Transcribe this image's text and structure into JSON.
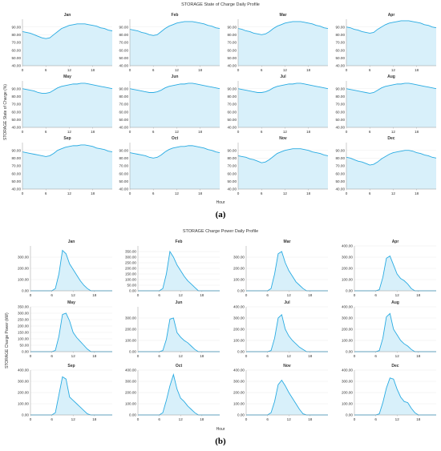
{
  "figures": [
    {
      "title": "STORAGE State of Charge Daily Profile",
      "ylabel": "STORAGE State of Charge (%)",
      "xlabel": "Hour",
      "panel_label": "(a)"
    },
    {
      "title": "STORAGE Charge Power Daily Profile",
      "ylabel": "STORAGE Charge Power (kW)",
      "xlabel": "Hour",
      "panel_label": "(b)"
    }
  ],
  "colors": {
    "line": "#29abe2",
    "fill": "#d8f0fa",
    "axis": "#999999",
    "grid": "#e6e6e6",
    "text": "#333333"
  },
  "chart_data": [
    {
      "type": "area",
      "title": "STORAGE State of Charge Daily Profile",
      "xlabel": "Hour",
      "ylabel": "STORAGE State of Charge (%)",
      "xlim": [
        0,
        23
      ],
      "ylim": [
        40,
        100
      ],
      "xticks": [
        "0",
        "6",
        "12",
        "18"
      ],
      "yticks": [
        "40.00",
        "50.00",
        "60.00",
        "70.00",
        "80.00",
        "90.00"
      ],
      "x": [
        0,
        1,
        2,
        3,
        4,
        5,
        6,
        7,
        8,
        9,
        10,
        11,
        12,
        13,
        14,
        15,
        16,
        17,
        18,
        19,
        20,
        21,
        22,
        23
      ],
      "series": [
        {
          "name": "Jan",
          "values": [
            84,
            83,
            82,
            80,
            78,
            76,
            75,
            76,
            80,
            84,
            88,
            90,
            92,
            93,
            94,
            94,
            94,
            93,
            92,
            91,
            89,
            88,
            86,
            85
          ]
        },
        {
          "name": "Feb",
          "values": [
            87,
            86,
            85,
            83,
            82,
            80,
            79,
            80,
            84,
            88,
            91,
            93,
            95,
            96,
            97,
            97,
            97,
            96,
            95,
            94,
            92,
            91,
            89,
            88
          ]
        },
        {
          "name": "Mar",
          "values": [
            88,
            87,
            85,
            84,
            82,
            81,
            80,
            81,
            84,
            88,
            91,
            93,
            95,
            96,
            97,
            97,
            97,
            96,
            95,
            94,
            92,
            91,
            89,
            88
          ]
        },
        {
          "name": "Apr",
          "values": [
            90,
            89,
            87,
            86,
            84,
            83,
            82,
            83,
            87,
            90,
            93,
            95,
            96,
            97,
            98,
            98,
            98,
            97,
            96,
            95,
            93,
            92,
            90,
            89
          ]
        },
        {
          "name": "May",
          "values": [
            90,
            89,
            88,
            87,
            85,
            84,
            84,
            85,
            88,
            91,
            93,
            94,
            95,
            96,
            96,
            97,
            97,
            96,
            95,
            94,
            93,
            92,
            91,
            90
          ]
        },
        {
          "name": "Jun",
          "values": [
            90,
            89,
            88,
            87,
            86,
            85,
            85,
            86,
            88,
            91,
            93,
            94,
            95,
            96,
            96,
            97,
            97,
            96,
            95,
            94,
            93,
            92,
            91,
            90
          ]
        },
        {
          "name": "Jul",
          "values": [
            90,
            89,
            88,
            87,
            86,
            85,
            85,
            86,
            88,
            91,
            93,
            94,
            95,
            96,
            96,
            97,
            97,
            96,
            95,
            94,
            93,
            92,
            91,
            90
          ]
        },
        {
          "name": "Aug",
          "values": [
            90,
            89,
            88,
            87,
            86,
            85,
            84,
            85,
            88,
            91,
            93,
            94,
            95,
            96,
            96,
            97,
            97,
            96,
            95,
            94,
            93,
            92,
            91,
            90
          ]
        },
        {
          "name": "Sep",
          "values": [
            88,
            87,
            86,
            85,
            84,
            83,
            82,
            83,
            86,
            90,
            92,
            94,
            95,
            96,
            96,
            97,
            97,
            96,
            95,
            93,
            92,
            91,
            89,
            88
          ]
        },
        {
          "name": "Oct",
          "values": [
            87,
            86,
            85,
            84,
            83,
            81,
            80,
            81,
            84,
            88,
            91,
            93,
            94,
            95,
            95,
            96,
            96,
            95,
            94,
            93,
            91,
            90,
            88,
            87
          ]
        },
        {
          "name": "Nov",
          "values": [
            83,
            82,
            81,
            79,
            78,
            76,
            74,
            75,
            78,
            82,
            86,
            88,
            90,
            91,
            92,
            92,
            92,
            91,
            90,
            88,
            87,
            86,
            84,
            83
          ]
        },
        {
          "name": "Dec",
          "values": [
            81,
            80,
            78,
            76,
            75,
            73,
            71,
            72,
            75,
            79,
            82,
            85,
            87,
            88,
            89,
            90,
            90,
            89,
            87,
            86,
            84,
            83,
            81,
            80
          ]
        }
      ]
    },
    {
      "type": "area",
      "title": "STORAGE Charge Power Daily Profile",
      "xlabel": "Hour",
      "ylabel": "STORAGE Charge Power (kW)",
      "xlim": [
        0,
        23
      ],
      "xticks": [
        "0",
        "6",
        "12",
        "18"
      ],
      "x": [
        0,
        1,
        2,
        3,
        4,
        5,
        6,
        7,
        8,
        9,
        10,
        11,
        12,
        13,
        14,
        15,
        16,
        17,
        18,
        19,
        20,
        21,
        22,
        23
      ],
      "series": [
        {
          "name": "Jan",
          "ylim": [
            0,
            400
          ],
          "yticks": [
            "0.00",
            "100.00",
            "200.00",
            "300.00"
          ],
          "values": [
            0,
            0,
            0,
            0,
            0,
            0,
            0,
            20,
            150,
            360,
            330,
            240,
            190,
            140,
            90,
            50,
            20,
            0,
            0,
            0,
            0,
            0,
            0,
            0
          ]
        },
        {
          "name": "Feb",
          "ylim": [
            0,
            400
          ],
          "yticks": [
            "0.00",
            "50.00",
            "100.00",
            "150.00",
            "200.00",
            "250.00",
            "300.00",
            "350.00"
          ],
          "values": [
            0,
            0,
            0,
            0,
            0,
            0,
            0,
            20,
            150,
            350,
            300,
            230,
            180,
            130,
            90,
            60,
            30,
            0,
            0,
            0,
            0,
            0,
            0,
            0
          ]
        },
        {
          "name": "Mar",
          "ylim": [
            0,
            400
          ],
          "yticks": [
            "0.00",
            "100.00",
            "200.00",
            "300.00"
          ],
          "values": [
            0,
            0,
            0,
            0,
            0,
            0,
            0,
            20,
            150,
            330,
            350,
            250,
            180,
            130,
            80,
            50,
            20,
            0,
            0,
            0,
            0,
            0,
            0,
            0
          ]
        },
        {
          "name": "Apr",
          "ylim": [
            0,
            400
          ],
          "yticks": [
            "0.00",
            "100.00",
            "200.00",
            "300.00",
            "400.00"
          ],
          "values": [
            0,
            0,
            0,
            0,
            0,
            0,
            0,
            10,
            120,
            290,
            310,
            230,
            150,
            110,
            90,
            60,
            20,
            0,
            0,
            0,
            0,
            0,
            0,
            0
          ]
        },
        {
          "name": "May",
          "ylim": [
            0,
            350
          ],
          "yticks": [
            "0.00",
            "50.00",
            "100.00",
            "150.00",
            "200.00",
            "250.00",
            "300.00",
            "350.00"
          ],
          "values": [
            0,
            0,
            0,
            0,
            0,
            0,
            0,
            10,
            120,
            290,
            300,
            240,
            150,
            110,
            80,
            50,
            20,
            0,
            0,
            0,
            0,
            0,
            0,
            0
          ]
        },
        {
          "name": "Jun",
          "ylim": [
            0,
            400
          ],
          "yticks": [
            "0.00",
            "100.00",
            "200.00",
            "300.00"
          ],
          "values": [
            0,
            0,
            0,
            0,
            0,
            0,
            0,
            10,
            110,
            290,
            300,
            170,
            130,
            100,
            80,
            50,
            20,
            0,
            0,
            0,
            0,
            0,
            0,
            0
          ]
        },
        {
          "name": "Jul",
          "ylim": [
            0,
            400
          ],
          "yticks": [
            "0.00",
            "100.00",
            "200.00",
            "300.00",
            "400.00"
          ],
          "values": [
            0,
            0,
            0,
            0,
            0,
            0,
            0,
            10,
            120,
            300,
            330,
            200,
            140,
            100,
            70,
            40,
            20,
            0,
            0,
            0,
            0,
            0,
            0,
            0
          ]
        },
        {
          "name": "Aug",
          "ylim": [
            0,
            400
          ],
          "yticks": [
            "0.00",
            "100.00",
            "200.00",
            "300.00",
            "400.00"
          ],
          "values": [
            0,
            0,
            0,
            0,
            0,
            0,
            0,
            10,
            120,
            310,
            340,
            200,
            150,
            100,
            70,
            50,
            20,
            0,
            0,
            0,
            0,
            0,
            0,
            0
          ]
        },
        {
          "name": "Sep",
          "ylim": [
            0,
            400
          ],
          "yticks": [
            "0.00",
            "100.00",
            "200.00",
            "300.00",
            "400.00"
          ],
          "values": [
            0,
            0,
            0,
            0,
            0,
            0,
            0,
            20,
            180,
            340,
            320,
            160,
            130,
            100,
            70,
            40,
            10,
            0,
            0,
            0,
            0,
            0,
            0,
            0
          ]
        },
        {
          "name": "Oct",
          "ylim": [
            0,
            400
          ],
          "yticks": [
            "0.00",
            "100.00",
            "200.00",
            "300.00",
            "400.00"
          ],
          "values": [
            0,
            0,
            0,
            0,
            0,
            0,
            0,
            20,
            130,
            260,
            360,
            230,
            150,
            120,
            80,
            50,
            20,
            0,
            0,
            0,
            0,
            0,
            0,
            0
          ]
        },
        {
          "name": "Nov",
          "ylim": [
            0,
            400
          ],
          "yticks": [
            "0.00",
            "100.00",
            "200.00",
            "300.00",
            "400.00"
          ],
          "values": [
            0,
            0,
            0,
            0,
            0,
            0,
            0,
            20,
            120,
            270,
            310,
            260,
            200,
            150,
            100,
            50,
            10,
            0,
            0,
            0,
            0,
            0,
            0,
            0
          ]
        },
        {
          "name": "Dec",
          "ylim": [
            0,
            400
          ],
          "yticks": [
            "0.00",
            "100.00",
            "200.00",
            "300.00",
            "400.00"
          ],
          "values": [
            0,
            0,
            0,
            0,
            0,
            0,
            0,
            10,
            110,
            240,
            330,
            320,
            230,
            160,
            120,
            110,
            60,
            20,
            0,
            0,
            0,
            0,
            0,
            0
          ]
        }
      ]
    }
  ]
}
